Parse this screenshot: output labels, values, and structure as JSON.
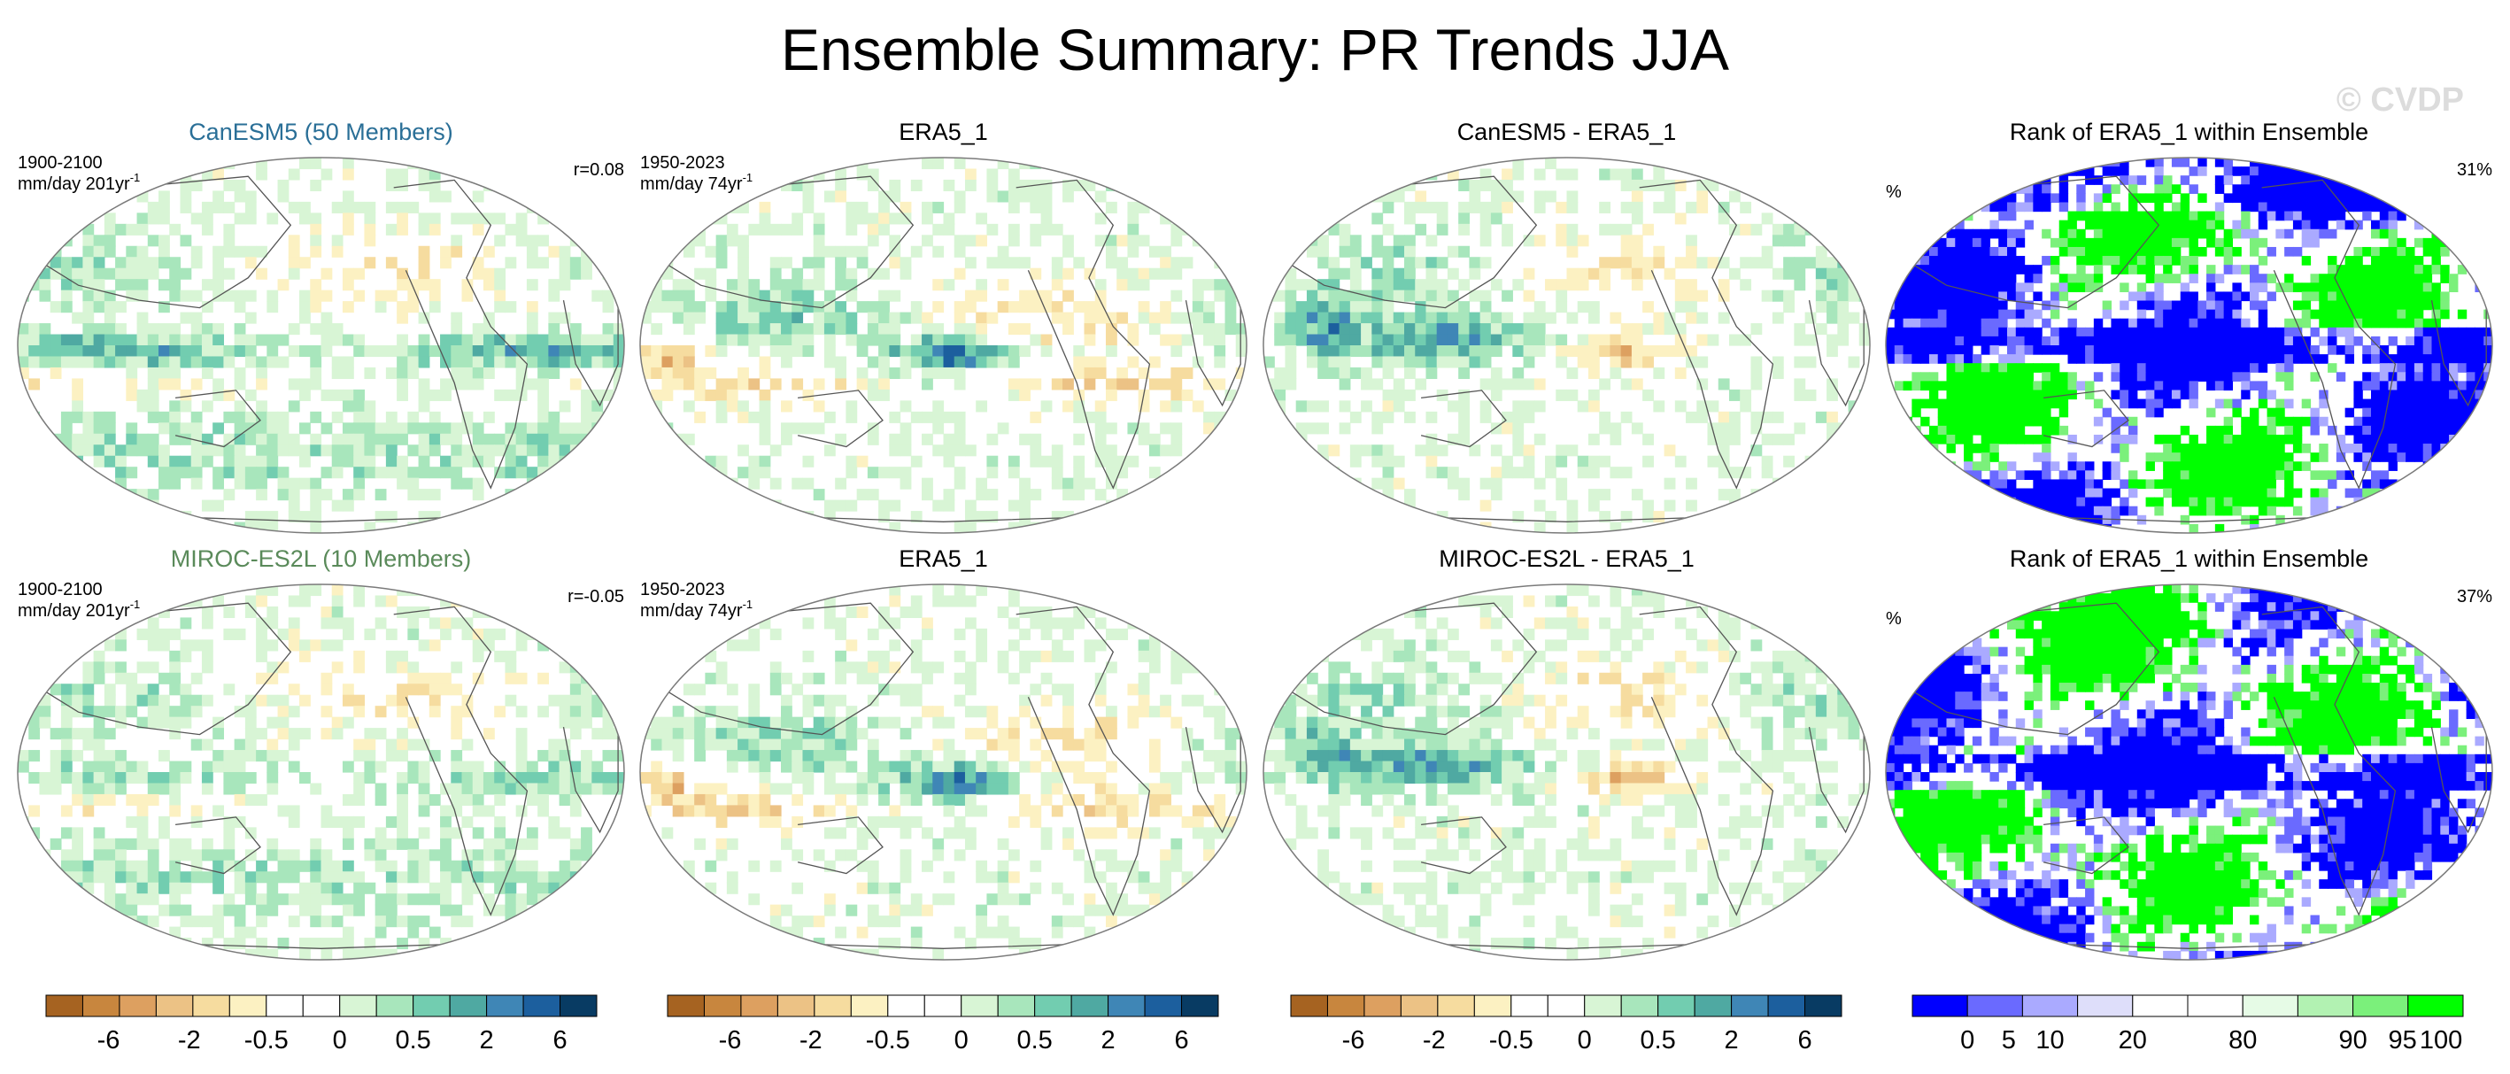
{
  "page": {
    "title": "Ensemble Summary: PR Trends JJA",
    "watermark": "© CVDP"
  },
  "colors": {
    "trend_scale": [
      "#a66321",
      "#c8863e",
      "#dda060",
      "#ecc285",
      "#f6dc9f",
      "#fcf1c2",
      "#ffffff",
      "#ffffff",
      "#d8f5d5",
      "#a8e6bc",
      "#72cdb0",
      "#4fa9a2",
      "#3f86b6",
      "#1c5f9e",
      "#083b63"
    ],
    "rank_scale": [
      "#0000ff",
      "#6a6aff",
      "#aaaaff",
      "#dedefa",
      "#ffffff",
      "#ffffff",
      "#e6fbe6",
      "#b2f2b2",
      "#7bf07b",
      "#00ff00"
    ],
    "model1_title": "#2a6f97",
    "model2_title": "#5a8a5a",
    "coastline": "#555555"
  },
  "chart_data": [
    {
      "type": "heatmap",
      "row": 1,
      "col": 1,
      "title": "CanESM5 (50 Members)",
      "period": "1900-2100",
      "units": "mm/day 201yr",
      "units_sup": "-1",
      "stat": "r=0.08"
    },
    {
      "type": "heatmap",
      "row": 1,
      "col": 2,
      "title": "ERA5_1",
      "period": "1950-2023",
      "units": "mm/day 74yr",
      "units_sup": "-1",
      "stat": ""
    },
    {
      "type": "heatmap",
      "row": 1,
      "col": 3,
      "title": "CanESM5 - ERA5_1",
      "period": "",
      "units": "",
      "units_sup": "",
      "stat": ""
    },
    {
      "type": "heatmap",
      "row": 1,
      "col": 4,
      "title": "Rank of ERA5_1 within Ensemble",
      "period": "",
      "units": "%",
      "units_sup": "",
      "stat": "31%"
    },
    {
      "type": "heatmap",
      "row": 2,
      "col": 1,
      "title": "MIROC-ES2L (10 Members)",
      "period": "1900-2100",
      "units": "mm/day 201yr",
      "units_sup": "-1",
      "stat": "r=-0.05"
    },
    {
      "type": "heatmap",
      "row": 2,
      "col": 2,
      "title": "ERA5_1",
      "period": "1950-2023",
      "units": "mm/day 74yr",
      "units_sup": "-1",
      "stat": ""
    },
    {
      "type": "heatmap",
      "row": 2,
      "col": 3,
      "title": "MIROC-ES2L - ERA5_1",
      "period": "",
      "units": "",
      "units_sup": "",
      "stat": ""
    },
    {
      "type": "heatmap",
      "row": 2,
      "col": 4,
      "title": "Rank of ERA5_1 within Ensemble",
      "period": "",
      "units": "%",
      "units_sup": "",
      "stat": "37%"
    }
  ],
  "colorbars": {
    "trend_labels": [
      "-6",
      "-2",
      "-0.5",
      "0",
      "0.5",
      "2",
      "6"
    ],
    "rank_labels": [
      "0",
      "5",
      "10",
      "20",
      "80",
      "90",
      "95",
      "100"
    ]
  }
}
